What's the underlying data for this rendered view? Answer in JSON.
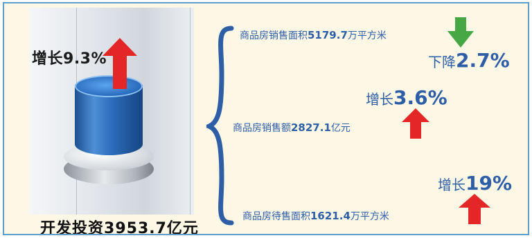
{
  "investment": {
    "growth_label": "增长",
    "growth_value": "9.3%",
    "amount_label": "开发投资",
    "amount_value": "3953.7亿元"
  },
  "items": [
    {
      "label": "商品房销售面积",
      "value": "5179.7",
      "unit": "万平方米",
      "change_word": "下降",
      "change_value": "2.7%",
      "direction": "down",
      "arrow_color": "#45a845"
    },
    {
      "label": "商品房销售额",
      "value": "2827.1",
      "unit": "亿元",
      "change_word": "增长",
      "change_value": "3.6%",
      "direction": "up",
      "arrow_color": "#e32626"
    },
    {
      "label": "商品房待售面积",
      "value": "1621.4",
      "unit": "万平方米",
      "change_word": "增长",
      "change_value": "19%",
      "direction": "up",
      "arrow_color": "#e32626"
    }
  ],
  "colors": {
    "brace": "#2d5ea6",
    "text_blue": "#2d5ea6",
    "background": "#fdf7e6",
    "cylinder": "#2c6cb9"
  }
}
